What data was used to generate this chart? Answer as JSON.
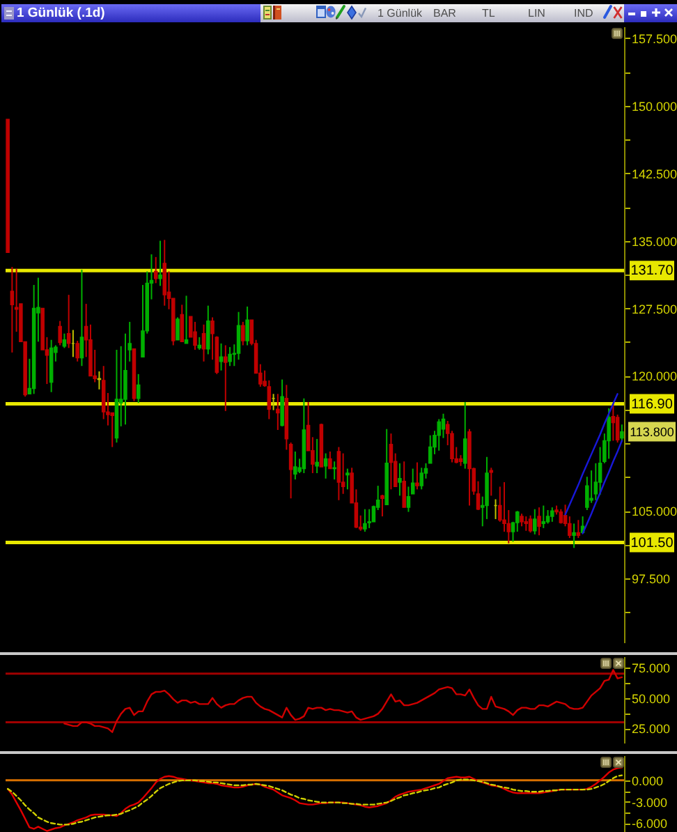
{
  "chart_data": [
    {
      "type": "candlestick",
      "title": "1 Günlük (.1d)",
      "categories": [
        null,
        null,
        null,
        null,
        null,
        null,
        null,
        null,
        null,
        null,
        null,
        null,
        null,
        null,
        null,
        null,
        null,
        null,
        null,
        null,
        null,
        null,
        null,
        null,
        null,
        null,
        null,
        null,
        null,
        null,
        null,
        null,
        null,
        null,
        null,
        null,
        null,
        null,
        null,
        null,
        null,
        null,
        null,
        null,
        null,
        null,
        null,
        null,
        null,
        null,
        null,
        null,
        null,
        null,
        null,
        null,
        null,
        null,
        null,
        null,
        null,
        null,
        null,
        null,
        null,
        null,
        null,
        null,
        null,
        null,
        null,
        null,
        null,
        null,
        null,
        null,
        null,
        null,
        null,
        null,
        null,
        null,
        null,
        null,
        null,
        null,
        null,
        null,
        null,
        null,
        null,
        null,
        null,
        null,
        null,
        null,
        null,
        null,
        null,
        null,
        null,
        null,
        null,
        null,
        null,
        null,
        null,
        null,
        null,
        null,
        null,
        null,
        null,
        null,
        null,
        null,
        null,
        null,
        null,
        null,
        null,
        null,
        null,
        null,
        null,
        null,
        null,
        null,
        null,
        null,
        null,
        null,
        null,
        null,
        null,
        null,
        null,
        null,
        null,
        null,
        null,
        null
      ],
      "ohlc": [
        [
          148.5,
          148.5,
          133.7,
          133.7
        ],
        [
          129.4,
          132.1,
          122.6,
          127.9
        ],
        [
          127.6,
          131.9,
          124.9,
          127.4
        ],
        [
          128.0,
          128.0,
          123.8,
          123.8
        ],
        [
          123.8,
          123.8,
          117.7,
          117.9
        ],
        [
          118.0,
          121.9,
          118.0,
          118.6
        ],
        [
          118.6,
          130.1,
          118.0,
          127.5
        ],
        [
          127.0,
          130.9,
          123.8,
          127.6
        ],
        [
          127.5,
          127.5,
          122.9,
          122.9
        ],
        [
          122.9,
          124.3,
          119.1,
          122.3
        ],
        [
          119.3,
          124.0,
          118.2,
          123.1
        ],
        [
          122.6,
          123.4,
          121.6,
          123.2
        ],
        [
          125.5,
          126.1,
          123.4,
          123.7
        ],
        [
          123.3,
          124.7,
          123.1,
          124.0
        ],
        [
          124.7,
          129.0,
          123.1,
          123.6
        ],
        [
          123.6,
          125.1,
          122.1,
          123.6
        ],
        [
          123.6,
          123.9,
          121.6,
          122.0
        ],
        [
          122.0,
          131.8,
          121.1,
          124.3
        ],
        [
          125.5,
          128.0,
          122.1,
          124.0
        ],
        [
          124.0,
          125.7,
          120.0,
          120.0
        ],
        [
          120.0,
          122.9,
          119.3,
          119.7
        ],
        [
          119.7,
          120.5,
          118.5,
          119.6
        ],
        [
          119.5,
          121.1,
          115.2,
          116.0
        ],
        [
          116.0,
          118.1,
          114.5,
          115.7
        ],
        [
          115.9,
          115.9,
          112.1,
          115.6
        ],
        [
          113.1,
          122.9,
          112.6,
          117.4
        ],
        [
          117.0,
          123.3,
          114.4,
          117.4
        ],
        [
          117.4,
          124.7,
          114.6,
          120.6
        ],
        [
          122.9,
          126.0,
          121.6,
          123.6
        ],
        [
          123.0,
          123.0,
          117.2,
          117.5
        ],
        [
          117.5,
          120.2,
          117.0,
          119.0
        ],
        [
          122.1,
          130.1,
          122.1,
          125.0
        ],
        [
          125.0,
          131.6,
          124.7,
          130.3
        ],
        [
          130.3,
          133.5,
          128.5,
          130.6
        ],
        [
          131.6,
          133.2,
          130.3,
          130.8
        ],
        [
          130.8,
          135.0,
          130.0,
          131.2
        ],
        [
          132.5,
          135.1,
          127.8,
          129.0
        ],
        [
          129.3,
          131.6,
          127.4,
          128.6
        ],
        [
          128.6,
          128.6,
          123.4,
          123.9
        ],
        [
          124.0,
          126.5,
          124.0,
          126.3
        ],
        [
          126.8,
          127.9,
          123.8,
          123.8
        ],
        [
          123.6,
          128.9,
          123.6,
          124.0
        ],
        [
          126.6,
          126.6,
          124.3,
          124.3
        ],
        [
          124.9,
          126.0,
          122.9,
          123.4
        ],
        [
          123.1,
          124.3,
          122.9,
          123.4
        ],
        [
          124.7,
          125.7,
          121.6,
          123.0
        ],
        [
          123.0,
          127.8,
          122.4,
          126.1
        ],
        [
          126.1,
          126.5,
          121.8,
          124.7
        ],
        [
          124.3,
          124.4,
          120.2,
          120.4
        ],
        [
          121.6,
          123.6,
          120.6,
          122.1
        ],
        [
          122.1,
          123.4,
          116.1,
          121.5
        ],
        [
          121.6,
          123.2,
          121.1,
          122.4
        ],
        [
          122.4,
          123.5,
          121.1,
          122.5
        ],
        [
          122.5,
          127.1,
          121.8,
          125.6
        ],
        [
          125.6,
          126.0,
          123.4,
          123.9
        ],
        [
          123.9,
          127.7,
          123.4,
          126.2
        ],
        [
          126.2,
          126.2,
          123.4,
          123.6
        ],
        [
          123.6,
          124.0,
          120.3,
          120.3
        ],
        [
          120.3,
          121.3,
          118.8,
          119.1
        ],
        [
          119.4,
          120.6,
          118.8,
          118.9
        ],
        [
          118.8,
          119.5,
          115.2,
          116.3
        ],
        [
          117.5,
          118.0,
          116.2,
          117.5
        ],
        [
          116.3,
          118.0,
          114.0,
          115.9
        ],
        [
          114.5,
          119.6,
          114.4,
          117.7
        ],
        [
          117.5,
          119.0,
          111.8,
          113.0
        ],
        [
          112.4,
          112.6,
          106.4,
          109.6
        ],
        [
          109.1,
          111.6,
          108.5,
          109.9
        ],
        [
          109.4,
          110.8,
          109.2,
          109.8
        ],
        [
          109.7,
          117.5,
          109.2,
          114.0
        ],
        [
          114.5,
          117.1,
          111.7,
          111.7
        ],
        [
          111.7,
          113.2,
          109.2,
          110.2
        ],
        [
          110.0,
          113.0,
          109.2,
          110.4
        ],
        [
          114.6,
          114.7,
          109.9,
          109.9
        ],
        [
          110.0,
          111.4,
          108.6,
          110.8
        ],
        [
          110.8,
          111.6,
          109.7,
          109.7
        ],
        [
          109.7,
          110.5,
          108.5,
          109.8
        ],
        [
          111.6,
          112.1,
          106.2,
          108.2
        ],
        [
          108.2,
          111.4,
          106.9,
          107.7
        ],
        [
          109.0,
          109.7,
          107.4,
          109.2
        ],
        [
          109.2,
          109.8,
          105.9,
          105.9
        ],
        [
          105.9,
          107.4,
          103.1,
          103.2
        ],
        [
          103.2,
          104.5,
          102.8,
          103.0
        ],
        [
          103.0,
          105.2,
          102.7,
          103.6
        ],
        [
          103.7,
          105.2,
          103.1,
          103.8
        ],
        [
          103.8,
          105.6,
          103.8,
          105.5
        ],
        [
          105.4,
          107.8,
          105.1,
          106.2
        ],
        [
          106.7,
          106.8,
          104.4,
          106.4
        ],
        [
          105.7,
          114.1,
          105.7,
          110.3
        ],
        [
          112.4,
          113.6,
          107.4,
          110.4
        ],
        [
          110.5,
          111.4,
          107.7,
          107.7
        ],
        [
          108.2,
          110.3,
          106.7,
          108.6
        ],
        [
          108.3,
          110.5,
          105.4,
          105.4
        ],
        [
          105.4,
          107.7,
          104.9,
          106.6
        ],
        [
          106.9,
          109.7,
          106.9,
          108.1
        ],
        [
          108.1,
          110.4,
          107.4,
          107.8
        ],
        [
          107.8,
          109.8,
          107.4,
          109.2
        ],
        [
          109.2,
          110.3,
          108.6,
          109.7
        ],
        [
          110.3,
          113.4,
          110.3,
          112.1
        ],
        [
          112.1,
          113.9,
          111.3,
          113.4
        ],
        [
          113.4,
          115.2,
          111.7,
          114.9
        ],
        [
          114.1,
          115.8,
          113.1,
          115.2
        ],
        [
          114.6,
          115.0,
          112.3,
          113.6
        ],
        [
          113.6,
          113.9,
          110.4,
          110.8
        ],
        [
          110.8,
          112.1,
          110.3,
          110.4
        ],
        [
          110.8,
          111.2,
          110.0,
          110.5
        ],
        [
          110.3,
          117.1,
          109.7,
          113.0
        ],
        [
          113.8,
          114.1,
          105.6,
          109.7
        ],
        [
          109.7,
          109.8,
          106.8,
          107.2
        ],
        [
          106.9,
          108.3,
          105.1,
          105.2
        ],
        [
          105.4,
          106.6,
          103.3,
          105.6
        ],
        [
          105.6,
          111.0,
          104.1,
          109.2
        ],
        [
          109.5,
          109.8,
          106.7,
          109.3
        ],
        [
          105.6,
          106.3,
          104.1,
          105.6
        ],
        [
          105.6,
          107.7,
          103.8,
          104.0
        ],
        [
          104.0,
          108.2,
          102.7,
          103.6
        ],
        [
          103.6,
          105.1,
          101.4,
          102.7
        ],
        [
          102.7,
          103.8,
          101.6,
          103.7
        ],
        [
          103.7,
          105.0,
          102.7,
          104.9
        ],
        [
          104.4,
          104.7,
          103.3,
          103.8
        ],
        [
          103.8,
          104.4,
          102.8,
          103.6
        ],
        [
          104.1,
          104.5,
          102.6,
          102.8
        ],
        [
          102.8,
          105.2,
          102.4,
          104.1
        ],
        [
          104.4,
          105.4,
          102.3,
          103.3
        ],
        [
          103.6,
          105.6,
          103.1,
          103.8
        ],
        [
          103.8,
          105.1,
          103.6,
          104.4
        ],
        [
          104.4,
          105.4,
          103.8,
          105.0
        ],
        [
          105.1,
          105.6,
          104.6,
          104.9
        ],
        [
          104.9,
          105.2,
          103.6,
          103.7
        ],
        [
          104.5,
          105.7,
          103.3,
          103.6
        ],
        [
          103.6,
          104.4,
          102.0,
          102.3
        ],
        [
          102.3,
          103.6,
          100.9,
          102.6
        ],
        [
          102.6,
          104.0,
          102.0,
          102.3
        ],
        [
          102.6,
          104.4,
          102.6,
          103.3
        ],
        [
          105.4,
          108.8,
          105.1,
          107.8
        ],
        [
          106.2,
          109.5,
          105.9,
          106.4
        ],
        [
          106.9,
          110.3,
          106.2,
          108.2
        ],
        [
          108.2,
          112.1,
          106.8,
          110.3
        ],
        [
          110.5,
          113.6,
          110.3,
          112.8
        ],
        [
          112.8,
          116.4,
          110.8,
          115.4
        ],
        [
          115.5,
          116.9,
          112.8,
          114.8
        ],
        [
          115.4,
          115.7,
          112.6,
          112.9
        ],
        [
          113.1,
          114.6,
          112.8,
          113.8
        ]
      ],
      "colors": [
        "#c00000",
        "#c00000",
        "#c00000",
        "#c00000",
        "#c00000",
        "#00b000",
        "#00b000",
        "#00b000",
        "#c00000",
        "#c00000",
        "#00b000",
        "#00b000",
        "#c00000",
        "#00b000",
        "#c00000",
        "#c0c000",
        "#c00000",
        "#00b000",
        "#c00000",
        "#c00000",
        "#c00000",
        "#c0c000",
        "#c00000",
        "#c00000",
        "#c00000",
        "#00b000",
        "#00b000",
        "#00b000",
        "#00b000",
        "#c00000",
        "#00b000",
        "#00b000",
        "#00b000",
        "#00b000",
        "#c00000",
        "#00b000",
        "#c00000",
        "#c00000",
        "#c00000",
        "#00b000",
        "#c00000",
        "#00b000",
        "#c00000",
        "#c00000",
        "#00b000",
        "#c00000",
        "#00b000",
        "#c00000",
        "#c00000",
        "#00b000",
        "#c00000",
        "#00b000",
        "#00b000",
        "#00b000",
        "#c00000",
        "#00b000",
        "#c00000",
        "#c00000",
        "#c00000",
        "#c00000",
        "#c00000",
        "#c0c000",
        "#c00000",
        "#00b000",
        "#c00000",
        "#c00000",
        "#00b000",
        "#00b000",
        "#00b000",
        "#c00000",
        "#c00000",
        "#00b000",
        "#c00000",
        "#00b000",
        "#c00000",
        "#00b000",
        "#c00000",
        "#c00000",
        "#00b000",
        "#c00000",
        "#c00000",
        "#c00000",
        "#00b000",
        "#00b000",
        "#00b000",
        "#00b000",
        "#c00000",
        "#00b000",
        "#c00000",
        "#c00000",
        "#00b000",
        "#c00000",
        "#00b000",
        "#00b000",
        "#c00000",
        "#00b000",
        "#00b000",
        "#00b000",
        "#00b000",
        "#00b000",
        "#00b000",
        "#c00000",
        "#c00000",
        "#c00000",
        "#c00000",
        "#00b000",
        "#c00000",
        "#c00000",
        "#c00000",
        "#00b000",
        "#00b000",
        "#c00000",
        "#c0c000",
        "#c00000",
        "#c00000",
        "#c00000",
        "#00b000",
        "#00b000",
        "#c00000",
        "#c00000",
        "#c00000",
        "#00b000",
        "#c00000",
        "#00b000",
        "#00b000",
        "#00b000",
        "#c00000",
        "#c00000",
        "#c00000",
        "#c00000",
        "#00b000",
        "#c00000",
        "#00b000",
        "#00b000",
        "#00b000",
        "#00b000",
        "#00b000",
        "#00b000",
        "#00b000",
        "#c00000",
        "#c00000",
        "#00b000"
      ],
      "series": [
        {
          "type": "line",
          "color": "#1818d8",
          "values": [
            null,
            null,
            null,
            null,
            null,
            null,
            null,
            null,
            null,
            null,
            null,
            null,
            null,
            null,
            null,
            null,
            null,
            null,
            null,
            null,
            null,
            null,
            null,
            null,
            null,
            null,
            null,
            null,
            null,
            null,
            null,
            null,
            null,
            null,
            null,
            null,
            null,
            null,
            null,
            null,
            null,
            null,
            null,
            null,
            null,
            null,
            null,
            null,
            null,
            null,
            null,
            null,
            null,
            null,
            null,
            null,
            null,
            null,
            null,
            null,
            null,
            null,
            null,
            null,
            null,
            null,
            null,
            null,
            null,
            null,
            null,
            null,
            null,
            null,
            null,
            null,
            null,
            null,
            null,
            null,
            null,
            null,
            null,
            null,
            null,
            null,
            null,
            null,
            null,
            null,
            null,
            null,
            null,
            null,
            null,
            null,
            null,
            null,
            null,
            null,
            null,
            null,
            null,
            null,
            null,
            null,
            null,
            null,
            null,
            null,
            null,
            null,
            null,
            null,
            null,
            null,
            null,
            null,
            null,
            null,
            null,
            null,
            null,
            null,
            null,
            null,
            null,
            null,
            104.6,
            105.7,
            106.8,
            107.9,
            109.1,
            110.2,
            111.3,
            112.4,
            113.5,
            114.7,
            115.8,
            116.9,
            118.0,
            null
          ]
        },
        {
          "type": "line",
          "color": "#1818d8",
          "values": [
            null,
            null,
            null,
            null,
            null,
            null,
            null,
            null,
            null,
            null,
            null,
            null,
            null,
            null,
            null,
            null,
            null,
            null,
            null,
            null,
            null,
            null,
            null,
            null,
            null,
            null,
            null,
            null,
            null,
            null,
            null,
            null,
            null,
            null,
            null,
            null,
            null,
            null,
            null,
            null,
            null,
            null,
            null,
            null,
            null,
            null,
            null,
            null,
            null,
            null,
            null,
            null,
            null,
            null,
            null,
            null,
            null,
            null,
            null,
            null,
            null,
            null,
            null,
            null,
            null,
            null,
            null,
            null,
            null,
            null,
            null,
            null,
            null,
            null,
            null,
            null,
            null,
            null,
            null,
            null,
            null,
            null,
            null,
            null,
            null,
            null,
            null,
            null,
            null,
            null,
            null,
            null,
            null,
            null,
            null,
            null,
            null,
            null,
            null,
            null,
            null,
            null,
            null,
            null,
            null,
            null,
            null,
            null,
            null,
            null,
            null,
            null,
            null,
            null,
            null,
            null,
            null,
            null,
            null,
            null,
            null,
            null,
            null,
            null,
            null,
            null,
            null,
            null,
            null,
            null,
            null,
            null,
            102.5,
            103.6,
            104.7,
            105.9,
            107.0,
            108.2,
            109.3,
            110.5,
            111.6,
            112.8
          ]
        }
      ],
      "ylim": [
        90.4,
        158.8
      ],
      "yticks": [
        {
          "value": 157.5,
          "label": "157.500"
        },
        {
          "value": 153.75,
          "label": null
        },
        {
          "value": 150,
          "label": "150.000"
        },
        {
          "value": 146.25,
          "label": null
        },
        {
          "value": 142.5,
          "label": "142.500"
        },
        {
          "value": 138.75,
          "label": null
        },
        {
          "value": 135,
          "label": "135.000"
        },
        {
          "value": 131.25,
          "label": null
        },
        {
          "value": 127.5,
          "label": "127.500"
        },
        {
          "value": 123.75,
          "label": null
        },
        {
          "value": 120,
          "label": "120.000"
        },
        {
          "value": 116.25,
          "label": null
        },
        {
          "value": 112.5,
          "label": null
        },
        {
          "value": 108.75,
          "label": null
        },
        {
          "value": 105,
          "label": "105.000"
        },
        {
          "value": 101.25,
          "label": null
        },
        {
          "value": 97.5,
          "label": "97.500"
        },
        {
          "value": 93.75,
          "label": null
        }
      ],
      "ref_lines": [
        {
          "axis": "y",
          "value": 131.7,
          "label": "131.70",
          "color": "#e8e800"
        },
        {
          "axis": "y",
          "value": 116.9,
          "label": "116.90",
          "color": "#e8e800"
        },
        {
          "axis": "y",
          "value": 101.5,
          "label": "101.50",
          "color": "#e8e800"
        }
      ],
      "annotations": [
        "113.800",
        "1 Günlük",
        "BAR",
        "TL",
        "LIN",
        "IND"
      ]
    },
    {
      "type": "line",
      "categories": [
        null,
        null,
        null,
        null,
        null,
        null,
        null,
        null,
        null,
        null,
        null,
        null,
        null,
        null,
        null,
        null,
        null,
        null,
        null,
        null,
        null,
        null,
        null,
        null,
        null,
        null,
        null,
        null,
        null,
        null,
        null,
        null,
        null,
        null,
        null,
        null,
        null,
        null,
        null,
        null,
        null,
        null,
        null,
        null,
        null,
        null,
        null,
        null,
        null,
        null,
        null,
        null,
        null,
        null,
        null,
        null,
        null,
        null,
        null,
        null,
        null,
        null,
        null,
        null,
        null,
        null,
        null,
        null,
        null,
        null,
        null,
        null,
        null,
        null,
        null,
        null,
        null,
        null,
        null,
        null,
        null,
        null,
        null,
        null,
        null,
        null,
        null,
        null,
        null,
        null,
        null,
        null,
        null,
        null,
        null,
        null,
        null,
        null,
        null,
        null,
        null,
        null,
        null,
        null,
        null,
        null,
        null,
        null,
        null,
        null,
        null,
        null,
        null,
        null,
        null,
        null,
        null,
        null,
        null,
        null,
        null,
        null,
        null,
        null,
        null,
        null,
        null,
        null,
        null,
        null,
        null,
        null,
        null,
        null,
        null,
        null,
        null,
        null,
        null,
        null,
        null,
        null
      ],
      "color": "#d00000",
      "values": [
        null,
        null,
        null,
        null,
        null,
        null,
        null,
        null,
        null,
        null,
        null,
        null,
        null,
        29,
        28,
        27,
        27,
        30,
        30,
        29,
        27,
        27,
        26,
        25,
        22,
        31,
        37,
        41,
        42,
        36,
        39,
        39,
        47,
        53,
        55,
        55,
        56,
        53,
        49,
        46,
        48,
        48,
        46,
        47,
        45,
        45,
        45,
        50,
        45,
        42,
        44,
        45,
        45,
        48,
        50,
        51,
        51,
        46,
        43,
        41,
        40,
        38,
        36,
        34,
        42,
        36,
        32,
        33,
        35,
        42,
        41,
        42,
        42,
        40,
        41,
        40,
        40,
        39,
        38,
        39,
        34,
        32,
        33,
        34,
        35,
        37,
        41,
        47,
        53,
        47,
        48,
        44,
        44,
        45,
        46,
        48,
        50,
        52,
        54,
        57,
        58,
        59,
        58,
        53,
        53,
        52,
        57,
        50,
        44,
        41,
        41,
        51,
        43,
        42,
        41,
        39,
        36,
        40,
        42,
        42,
        41,
        41,
        44,
        44,
        43,
        45,
        47,
        46,
        45,
        42,
        41,
        41,
        42,
        47,
        52,
        55,
        58,
        64,
        65,
        73,
        66,
        67
      ],
      "ylim": [
        13.2,
        84.1
      ],
      "yticks": [
        {
          "value": 75,
          "label": "75.000"
        },
        {
          "value": 62.5,
          "label": null
        },
        {
          "value": 50,
          "label": "50.000"
        },
        {
          "value": 37.5,
          "label": null
        },
        {
          "value": 25,
          "label": "25.000"
        }
      ],
      "ref_lines": [
        {
          "axis": "y",
          "value": 70,
          "color": "#a00000"
        },
        {
          "axis": "y",
          "value": 30,
          "color": "#a00000"
        }
      ]
    },
    {
      "type": "line",
      "categories": [
        null,
        null,
        null,
        null,
        null,
        null,
        null,
        null,
        null,
        null,
        null,
        null,
        null,
        null,
        null,
        null,
        null,
        null,
        null,
        null,
        null,
        null,
        null,
        null,
        null,
        null,
        null,
        null,
        null,
        null,
        null,
        null,
        null,
        null,
        null,
        null,
        null,
        null,
        null,
        null,
        null,
        null,
        null,
        null,
        null,
        null,
        null,
        null,
        null,
        null,
        null,
        null,
        null,
        null,
        null,
        null,
        null,
        null,
        null,
        null,
        null,
        null,
        null,
        null,
        null,
        null,
        null,
        null,
        null,
        null,
        null,
        null,
        null,
        null,
        null,
        null,
        null,
        null,
        null,
        null,
        null,
        null,
        null,
        null,
        null,
        null,
        null,
        null,
        null,
        null,
        null,
        null,
        null,
        null,
        null,
        null,
        null,
        null,
        null,
        null,
        null,
        null,
        null,
        null,
        null,
        null,
        null,
        null,
        null,
        null,
        null,
        null,
        null,
        null,
        null,
        null,
        null,
        null,
        null,
        null,
        null,
        null,
        null,
        null,
        null,
        null,
        null,
        null,
        null,
        null,
        null,
        null,
        null,
        null,
        null,
        null,
        null,
        null,
        null,
        null,
        null,
        null
      ],
      "series": [
        {
          "color": "#e00000",
          "values": [
            -1.2,
            -2.0,
            -3.1,
            -4.2,
            -5.4,
            -6.6,
            -6.8,
            -6.5,
            -6.8,
            -7.1,
            -6.9,
            -6.7,
            -6.6,
            -6.3,
            -6.1,
            -5.9,
            -5.6,
            -5.4,
            -5.2,
            -4.9,
            -4.8,
            -4.8,
            -4.8,
            -4.9,
            -4.9,
            -5.0,
            -4.6,
            -4.0,
            -3.6,
            -3.4,
            -3.1,
            -2.5,
            -1.8,
            -1.1,
            -0.3,
            0.2,
            0.5,
            0.6,
            0.5,
            0.3,
            0.2,
            0.1,
            0.0,
            -0.1,
            -0.2,
            -0.3,
            -0.4,
            -0.4,
            -0.5,
            -0.7,
            -0.8,
            -0.9,
            -1.0,
            -1.0,
            -0.9,
            -0.7,
            -0.6,
            -0.5,
            -0.6,
            -0.9,
            -1.1,
            -1.3,
            -1.7,
            -2.1,
            -2.3,
            -2.5,
            -2.8,
            -3.2,
            -3.3,
            -3.4,
            -3.4,
            -3.3,
            -3.2,
            -3.2,
            -3.1,
            -3.1,
            -3.1,
            -3.1,
            -3.2,
            -3.3,
            -3.4,
            -3.5,
            -3.7,
            -3.8,
            -3.7,
            -3.6,
            -3.4,
            -3.2,
            -2.8,
            -2.3,
            -2.0,
            -1.8,
            -1.6,
            -1.5,
            -1.4,
            -1.3,
            -1.1,
            -0.9,
            -0.7,
            -0.5,
            -0.1,
            0.3,
            0.4,
            0.5,
            0.4,
            0.4,
            0.5,
            0.2,
            -0.1,
            -0.3,
            -0.5,
            -0.7,
            -0.8,
            -0.9,
            -1.2,
            -1.5,
            -1.7,
            -1.8,
            -1.8,
            -1.8,
            -1.8,
            -1.8,
            -1.8,
            -1.7,
            -1.6,
            -1.5,
            -1.4,
            -1.3,
            -1.3,
            -1.3,
            -1.3,
            -1.3,
            -1.3,
            -1.2,
            -0.9,
            -0.5,
            0.0,
            0.5,
            1.1,
            1.5,
            1.7,
            1.8
          ]
        },
        {
          "color": "#d0d000",
          "line_style": "dashed",
          "values": [
            -1.2,
            -1.6,
            -2.2,
            -2.8,
            -3.5,
            -4.1,
            -4.6,
            -5.2,
            -5.5,
            -5.8,
            -6.0,
            -6.1,
            -6.2,
            -6.2,
            -6.2,
            -6.1,
            -5.9,
            -5.8,
            -5.6,
            -5.4,
            -5.2,
            -5.1,
            -5.0,
            -4.9,
            -4.9,
            -4.8,
            -4.7,
            -4.4,
            -4.2,
            -3.9,
            -3.6,
            -3.1,
            -2.7,
            -2.2,
            -1.6,
            -1.1,
            -0.8,
            -0.5,
            -0.3,
            -0.1,
            0.0,
            0.0,
            0.0,
            0.0,
            -0.1,
            -0.1,
            -0.2,
            -0.3,
            -0.3,
            -0.4,
            -0.5,
            -0.6,
            -0.7,
            -0.7,
            -0.7,
            -0.6,
            -0.6,
            -0.5,
            -0.6,
            -0.7,
            -0.8,
            -1.0,
            -1.2,
            -1.4,
            -1.7,
            -2.0,
            -2.2,
            -2.5,
            -2.6,
            -2.8,
            -2.9,
            -3.0,
            -3.1,
            -3.1,
            -3.1,
            -3.1,
            -3.1,
            -3.2,
            -3.2,
            -3.3,
            -3.3,
            -3.4,
            -3.4,
            -3.4,
            -3.4,
            -3.3,
            -3.2,
            -3.1,
            -2.9,
            -2.6,
            -2.4,
            -2.1,
            -2.0,
            -1.8,
            -1.7,
            -1.5,
            -1.4,
            -1.3,
            -1.1,
            -1.0,
            -0.7,
            -0.5,
            -0.3,
            0.0,
            0.1,
            0.1,
            0.1,
            0.0,
            -0.1,
            -0.2,
            -0.4,
            -0.6,
            -0.7,
            -0.9,
            -1.0,
            -1.1,
            -1.3,
            -1.4,
            -1.5,
            -1.5,
            -1.6,
            -1.6,
            -1.6,
            -1.5,
            -1.5,
            -1.4,
            -1.4,
            -1.3,
            -1.3,
            -1.3,
            -1.3,
            -1.3,
            -1.3,
            -1.3,
            -1.2,
            -1.0,
            -0.8,
            -0.5,
            -0.1,
            0.3,
            0.6,
            0.7
          ]
        }
      ],
      "ylim": [
        -9,
        3.5
      ],
      "yticks": [
        {
          "value": 0,
          "label": "0.000"
        },
        {
          "value": -1.5,
          "label": null
        },
        {
          "value": -3,
          "label": "-3.000"
        },
        {
          "value": -4.5,
          "label": null
        },
        {
          "value": -6,
          "label": "-6.000"
        }
      ],
      "ref_lines": [
        {
          "axis": "y",
          "value": 0,
          "color": "#d87000"
        }
      ]
    }
  ]
}
